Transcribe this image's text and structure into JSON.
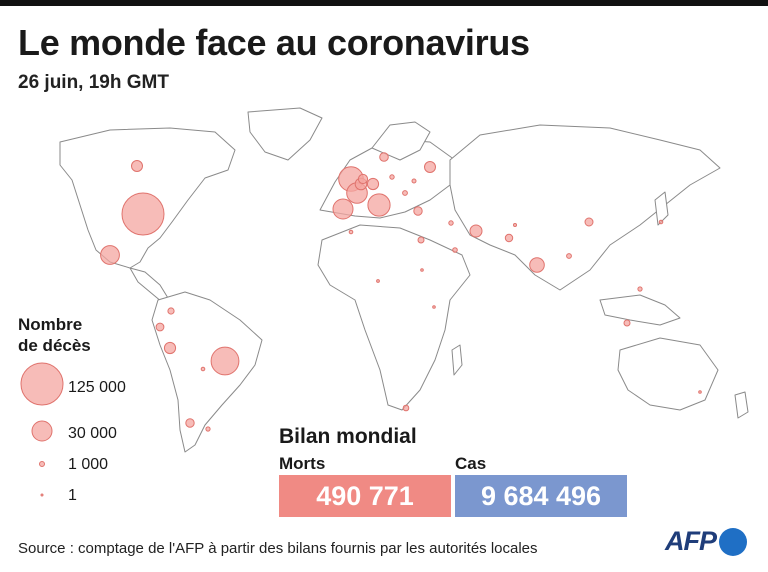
{
  "header": {
    "title": "Le monde face au coronavirus",
    "subtitle": "26 juin, 19h GMT"
  },
  "legend": {
    "title_line1": "Nombre",
    "title_line2": "de décès",
    "items": [
      {
        "label": "125 000",
        "value": 125000
      },
      {
        "label": "30 000",
        "value": 30000
      },
      {
        "label": "1 000",
        "value": 1000
      },
      {
        "label": "1",
        "value": 1
      }
    ]
  },
  "summary": {
    "title": "Bilan mondial",
    "deaths_label": "Morts",
    "deaths_value": "490 771",
    "cases_label": "Cas",
    "cases_value": "9 684 496"
  },
  "footer": {
    "source": "Source : comptage de l'AFP à partir des bilans fournis par les autorités locales",
    "logo_text": "AFP"
  },
  "colors": {
    "bubble_fill": "#f4a5a0",
    "bubble_stroke": "#e0736d",
    "deaths_box": "#f08a84",
    "cases_box": "#7b97cf"
  },
  "bubbles": [
    {
      "region": "Etats-Unis",
      "deaths": 125000
    },
    {
      "region": "Brésil",
      "deaths": 55000
    },
    {
      "region": "Royaume-Uni",
      "deaths": 43000
    },
    {
      "region": "Italie",
      "deaths": 34700
    },
    {
      "region": "France",
      "deaths": 29800
    },
    {
      "region": "Espagne",
      "deaths": 28300
    },
    {
      "region": "Mexique",
      "deaths": 25000
    },
    {
      "region": "Inde",
      "deaths": 15300
    },
    {
      "region": "Iran",
      "deaths": 10200
    },
    {
      "region": "Belgique",
      "deaths": 9700
    },
    {
      "region": "Allemagne",
      "deaths": 8900
    },
    {
      "region": "Canada",
      "deaths": 8500
    },
    {
      "region": "Russie",
      "deaths": 8600
    },
    {
      "region": "Pérou",
      "deaths": 8900
    },
    {
      "region": "Pays-Bas",
      "deaths": 6100
    },
    {
      "region": "Suède",
      "deaths": 5300
    },
    {
      "region": "Turquie",
      "deaths": 5100
    },
    {
      "region": "Chili",
      "deaths": 5000
    },
    {
      "region": "Equateur",
      "deaths": 4300
    },
    {
      "region": "Chine",
      "deaths": 4600
    },
    {
      "region": "Pakistan",
      "deaths": 3900
    },
    {
      "region": "Colombie",
      "deaths": 2800
    },
    {
      "region": "Egypte",
      "deaths": 2600
    },
    {
      "region": "Afrique du Sud",
      "deaths": 2300
    },
    {
      "region": "Indonésie",
      "deaths": 2600
    },
    {
      "region": "Arabie saoudite",
      "deaths": 1500
    },
    {
      "region": "Bangladesh",
      "deaths": 1700
    },
    {
      "region": "Philippines",
      "deaths": 1200
    },
    {
      "region": "Japon",
      "deaths": 970
    },
    {
      "region": "Argentine",
      "deaths": 1200
    },
    {
      "region": "Algérie",
      "deaths": 900
    },
    {
      "region": "Bolivie",
      "deaths": 950
    },
    {
      "region": "Nigeria",
      "deaths": 520
    },
    {
      "region": "Ukraine",
      "deaths": 1100
    },
    {
      "region": "Pologne",
      "deaths": 1400
    },
    {
      "region": "Roumanie",
      "deaths": 1600
    },
    {
      "region": "Irak",
      "deaths": 1400
    },
    {
      "region": "Afghanistan",
      "deaths": 610
    },
    {
      "region": "Soudan",
      "deaths": 500
    },
    {
      "region": "Kenya",
      "deaths": 110
    },
    {
      "region": "Australie",
      "deaths": 104
    }
  ]
}
